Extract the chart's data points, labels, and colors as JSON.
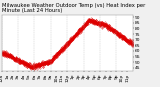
{
  "title": "Milwaukee Weather Outdoor Temp (vs) Heat Index per Minute (Last 24 Hours)",
  "bg_color": "#f0f0f0",
  "plot_bg_color": "#ffffff",
  "line_color": "#dd0000",
  "grid_color": "#aaaaaa",
  "ylim": [
    42,
    92
  ],
  "yticks": [
    45,
    50,
    55,
    60,
    65,
    70,
    75,
    80,
    85,
    90
  ],
  "num_points": 1440,
  "title_fontsize": 3.8,
  "tick_fontsize": 3.2,
  "markersize": 0.5
}
